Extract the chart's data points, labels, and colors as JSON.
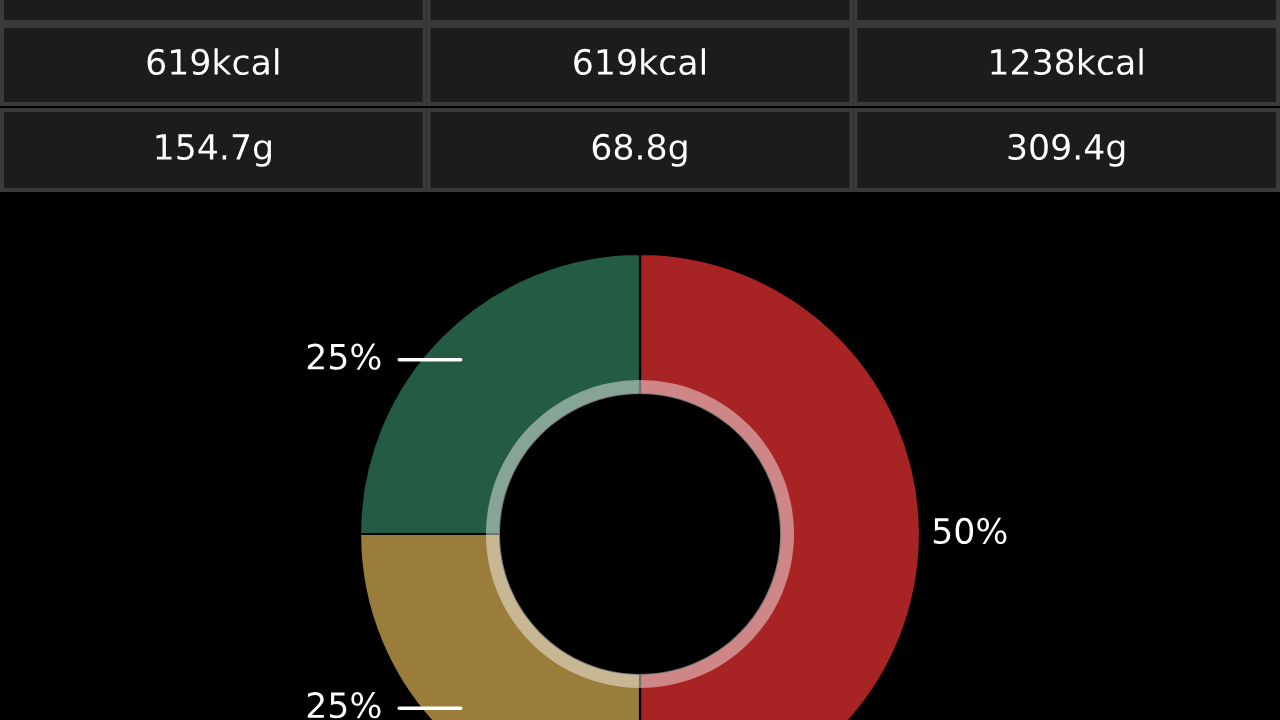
{
  "chart_data": {
    "type": "donut",
    "categories": [
      null,
      null,
      null
    ],
    "values": [
      50,
      25,
      25
    ],
    "colors": [
      "#a82424",
      "#9b7d3b",
      "#235c42"
    ],
    "value_labels": [
      "50%",
      "25%",
      "25%"
    ],
    "annotations": [
      "619kcal",
      "619kcal",
      "1238kcal",
      "154.7g",
      "68.8g",
      "309.4g"
    ]
  }
}
